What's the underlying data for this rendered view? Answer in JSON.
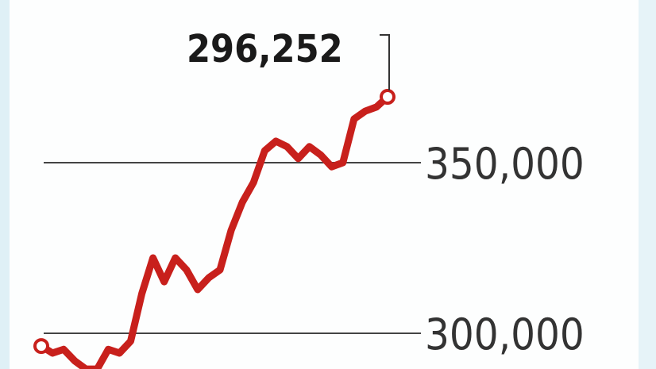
{
  "chart_data": {
    "type": "line",
    "title": "",
    "xlabel": "",
    "ylabel": "",
    "yticks": [
      300000,
      350000
    ],
    "ytick_labels": [
      "300,000",
      "350,000"
    ],
    "grid": true,
    "annotation": "296,252",
    "series": [
      {
        "color": "#c8201c",
        "values": [
          296252,
          294200,
          295300,
          291900,
          289500,
          289500,
          295300,
          294200,
          297700,
          311600,
          322100,
          315100,
          322100,
          318600,
          312800,
          316300,
          318600,
          330200,
          338400,
          344200,
          353500,
          356300,
          354700,
          351200,
          354700,
          352300,
          348800,
          350000,
          362800,
          365100,
          366300,
          369300
        ]
      }
    ]
  }
}
